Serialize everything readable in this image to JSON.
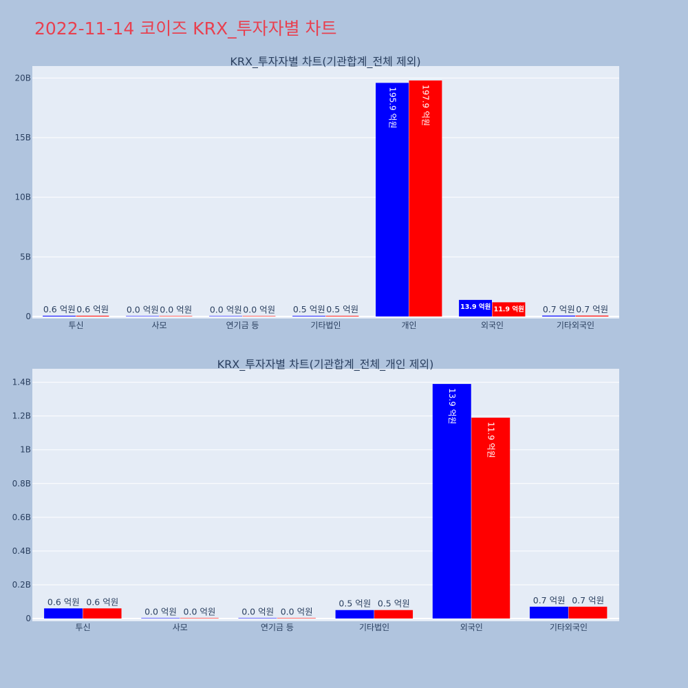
{
  "page_title": "2022-11-14 코이즈 KRX_투자자별 차트",
  "chart_data": [
    {
      "type": "bar",
      "title": "KRX_투자자별 차트(기관합계_전체 제외)",
      "categories": [
        "투신",
        "사모",
        "연기금 등",
        "기타법인",
        "개인",
        "외국인",
        "기타외국인"
      ],
      "ylim": [
        0,
        21000000000
      ],
      "ytick_values": [
        0,
        5000000000,
        10000000000,
        15000000000,
        20000000000
      ],
      "ytick_labels": [
        "0",
        "5B",
        "10B",
        "15B",
        "20B"
      ],
      "grid": true,
      "series": [
        {
          "color": "#0000ff",
          "values": [
            60000000,
            0,
            0,
            50000000,
            19590000000,
            1390000000,
            70000000
          ],
          "labels": [
            "0.6 억원",
            "0.0 억원",
            "0.0 억원",
            "0.5 억원",
            "195.9 억원",
            "13.9 억원",
            "0.7 억원"
          ]
        },
        {
          "color": "#ff0000",
          "values": [
            60000000,
            0,
            0,
            50000000,
            19790000000,
            1190000000,
            70000000
          ],
          "labels": [
            "0.6 억원",
            "0.0 억원",
            "0.0 억원",
            "0.5 억원",
            "197.9 억원",
            "11.9 억원",
            "0.7 억원"
          ]
        }
      ]
    },
    {
      "type": "bar",
      "title": "KRX_투자자별 차트(기관합계_전체_개인 제외)",
      "categories": [
        "투신",
        "사모",
        "연기금 등",
        "기타법인",
        "외국인",
        "기타외국인"
      ],
      "ylim": [
        0,
        1480000000
      ],
      "ytick_values": [
        0,
        200000000,
        400000000,
        600000000,
        800000000,
        1000000000,
        1200000000,
        1400000000
      ],
      "ytick_labels": [
        "0",
        "0.2B",
        "0.4B",
        "0.6B",
        "0.8B",
        "1B",
        "1.2B",
        "1.4B"
      ],
      "grid": true,
      "series": [
        {
          "color": "#0000ff",
          "values": [
            60000000,
            0,
            0,
            50000000,
            1390000000,
            70000000
          ],
          "labels": [
            "0.6 억원",
            "0.0 억원",
            "0.0 억원",
            "0.5 억원",
            "13.9 억원",
            "0.7 억원"
          ]
        },
        {
          "color": "#ff0000",
          "values": [
            60000000,
            0,
            0,
            50000000,
            1190000000,
            70000000
          ],
          "labels": [
            "0.6 억원",
            "0.0 억원",
            "0.0 억원",
            "0.5 억원",
            "11.9 억원",
            "0.7 억원"
          ]
        }
      ]
    }
  ]
}
